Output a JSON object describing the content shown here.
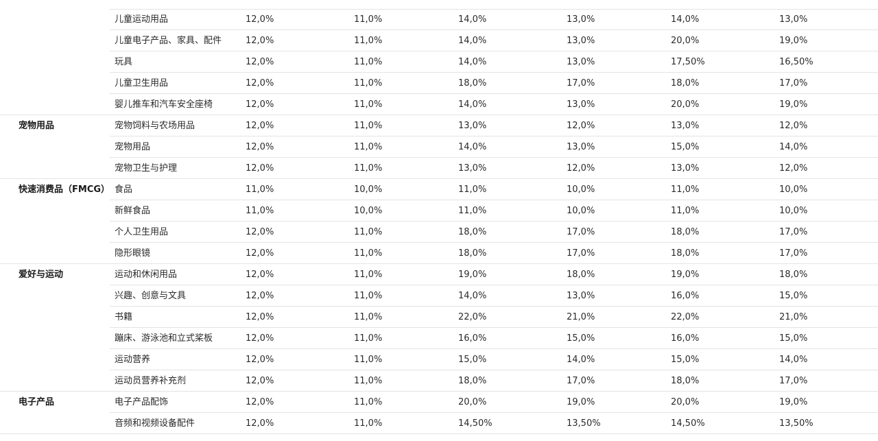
{
  "groups": [
    {
      "label": "",
      "rows": [
        {
          "sub": "儿童运动用品",
          "v": [
            "12,0%",
            "11,0%",
            "14,0%",
            "13,0%",
            "14,0%",
            "13,0%"
          ]
        },
        {
          "sub": "儿童电子产品、家具、配件",
          "v": [
            "12,0%",
            "11,0%",
            "14,0%",
            "13,0%",
            "20,0%",
            "19,0%"
          ]
        },
        {
          "sub": "玩具",
          "v": [
            "12,0%",
            "11,0%",
            "14,0%",
            "13,0%",
            "17,50%",
            "16,50%"
          ]
        },
        {
          "sub": "儿童卫生用品",
          "v": [
            "12,0%",
            "11,0%",
            "18,0%",
            "17,0%",
            "18,0%",
            "17,0%"
          ]
        },
        {
          "sub": "婴儿推车和汽车安全座椅",
          "v": [
            "12,0%",
            "11,0%",
            "14,0%",
            "13,0%",
            "20,0%",
            "19,0%"
          ]
        }
      ]
    },
    {
      "label": "宠物用品",
      "rows": [
        {
          "sub": "宠物饲料与农场用品",
          "v": [
            "12,0%",
            "11,0%",
            "13,0%",
            "12,0%",
            "13,0%",
            "12,0%"
          ]
        },
        {
          "sub": "宠物用品",
          "v": [
            "12,0%",
            "11,0%",
            "14,0%",
            "13,0%",
            "15,0%",
            "14,0%"
          ]
        },
        {
          "sub": "宠物卫生与护理",
          "v": [
            "12,0%",
            "11,0%",
            "13,0%",
            "12,0%",
            "13,0%",
            "12,0%"
          ]
        }
      ]
    },
    {
      "label": "快速消费品（FMCG）",
      "rows": [
        {
          "sub": "食品",
          "v": [
            "11,0%",
            "10,0%",
            "11,0%",
            "10,0%",
            "11,0%",
            "10,0%"
          ]
        },
        {
          "sub": "新鲜食品",
          "v": [
            "11,0%",
            "10,0%",
            "11,0%",
            "10,0%",
            "11,0%",
            "10,0%"
          ]
        },
        {
          "sub": "个人卫生用品",
          "v": [
            "12,0%",
            "11,0%",
            "18,0%",
            "17,0%",
            "18,0%",
            "17,0%"
          ]
        },
        {
          "sub": "隐形眼镜",
          "v": [
            "12,0%",
            "11,0%",
            "18,0%",
            "17,0%",
            "18,0%",
            "17,0%"
          ]
        }
      ]
    },
    {
      "label": "爱好与运动",
      "rows": [
        {
          "sub": "运动和休闲用品",
          "v": [
            "12,0%",
            "11,0%",
            "19,0%",
            "18,0%",
            "19,0%",
            "18,0%"
          ]
        },
        {
          "sub": "兴趣、创意与文具",
          "v": [
            "12,0%",
            "11,0%",
            "14,0%",
            "13,0%",
            "16,0%",
            "15,0%"
          ]
        },
        {
          "sub": "书籍",
          "v": [
            "12,0%",
            "11,0%",
            "22,0%",
            "21,0%",
            "22,0%",
            "21,0%"
          ]
        },
        {
          "sub": "蹦床、游泳池和立式桨板",
          "v": [
            "12,0%",
            "11,0%",
            "16,0%",
            "15,0%",
            "16,0%",
            "15,0%"
          ]
        },
        {
          "sub": "运动营养",
          "v": [
            "12,0%",
            "11,0%",
            "15,0%",
            "14,0%",
            "15,0%",
            "14,0%"
          ]
        },
        {
          "sub": "运动员营养补充剂",
          "v": [
            "12,0%",
            "11,0%",
            "18,0%",
            "17,0%",
            "18,0%",
            "17,0%"
          ]
        }
      ]
    },
    {
      "label": "电子产品",
      "rows": [
        {
          "sub": "电子产品配饰",
          "v": [
            "12,0%",
            "11,0%",
            "20,0%",
            "19,0%",
            "20,0%",
            "19,0%"
          ]
        },
        {
          "sub": "音频和视频设备配件",
          "v": [
            "12,0%",
            "11,0%",
            "14,50%",
            "13,50%",
            "14,50%",
            "13,50%"
          ]
        }
      ]
    }
  ]
}
